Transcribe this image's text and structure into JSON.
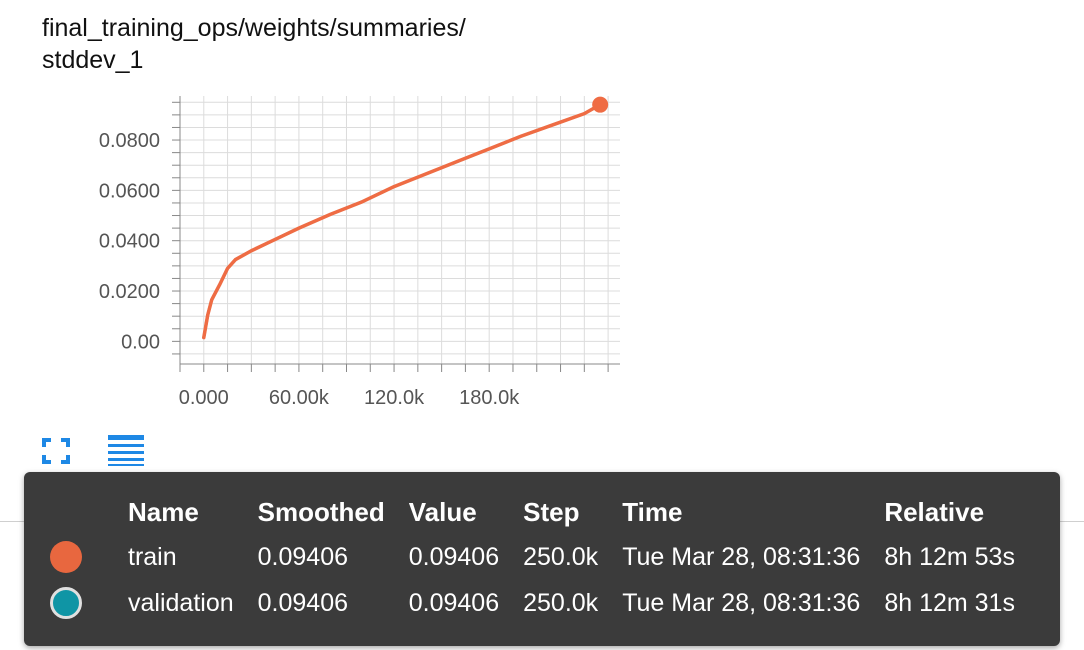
{
  "title_lines": [
    "final_training_ops/weights/summaries/",
    "stddev_1"
  ],
  "chart_data": {
    "type": "line",
    "title": "final_training_ops/weights/summaries/stddev_1",
    "xlabel": "",
    "ylabel": "",
    "xlim": [
      -15000,
      262500
    ],
    "ylim": [
      -0.009,
      0.0975
    ],
    "x_ticks": [
      0,
      60000,
      120000,
      180000
    ],
    "x_tick_labels": [
      "0.000",
      "60.00k",
      "120.0k",
      "180.0k"
    ],
    "y_ticks": [
      0,
      0.02,
      0.04,
      0.06,
      0.08
    ],
    "y_tick_labels": [
      "0.00",
      "0.0200",
      "0.0400",
      "0.0600",
      "0.0800"
    ],
    "grid": true,
    "series": [
      {
        "name": "validation",
        "color": "#0097a7",
        "x": [
          0,
          2500,
          5000,
          10000,
          15000,
          20000,
          30000,
          40000,
          50000,
          60000,
          80000,
          100000,
          120000,
          140000,
          160000,
          180000,
          200000,
          220000,
          240000,
          250000
        ],
        "y": [
          0.0015,
          0.0105,
          0.0165,
          0.0225,
          0.029,
          0.0325,
          0.036,
          0.039,
          0.042,
          0.045,
          0.0505,
          0.0555,
          0.0615,
          0.0665,
          0.0715,
          0.0765,
          0.0815,
          0.086,
          0.0905,
          0.09406
        ]
      },
      {
        "name": "train",
        "color": "#ef6c44",
        "x": [
          0,
          2500,
          5000,
          10000,
          15000,
          20000,
          30000,
          40000,
          50000,
          60000,
          80000,
          100000,
          120000,
          140000,
          160000,
          180000,
          200000,
          220000,
          240000,
          250000
        ],
        "y": [
          0.0015,
          0.0105,
          0.0165,
          0.0225,
          0.029,
          0.0325,
          0.036,
          0.039,
          0.042,
          0.045,
          0.0505,
          0.0555,
          0.0615,
          0.0665,
          0.0715,
          0.0765,
          0.0815,
          0.086,
          0.0905,
          0.09406
        ]
      }
    ]
  },
  "tooltip": {
    "headers": {
      "name": "Name",
      "smoothed": "Smoothed",
      "value": "Value",
      "step": "Step",
      "time": "Time",
      "relative": "Relative"
    },
    "rows": [
      {
        "name": "train",
        "color": "#e8673f",
        "smoothed": "0.09406",
        "value": "0.09406",
        "step": "250.0k",
        "time": "Tue Mar 28, 08:31:36",
        "relative": "8h 12m 53s"
      },
      {
        "name": "validation",
        "color": "#0f95a5",
        "smoothed": "0.09406",
        "value": "0.09406",
        "step": "250.0k",
        "time": "Tue Mar 28, 08:31:36",
        "relative": "8h 12m 31s"
      }
    ]
  },
  "toolbar": {
    "expand_icon": "fullscreen-expand-icon",
    "data_icon": "data-table-menu-icon",
    "accent_color": "#1e88e5"
  }
}
